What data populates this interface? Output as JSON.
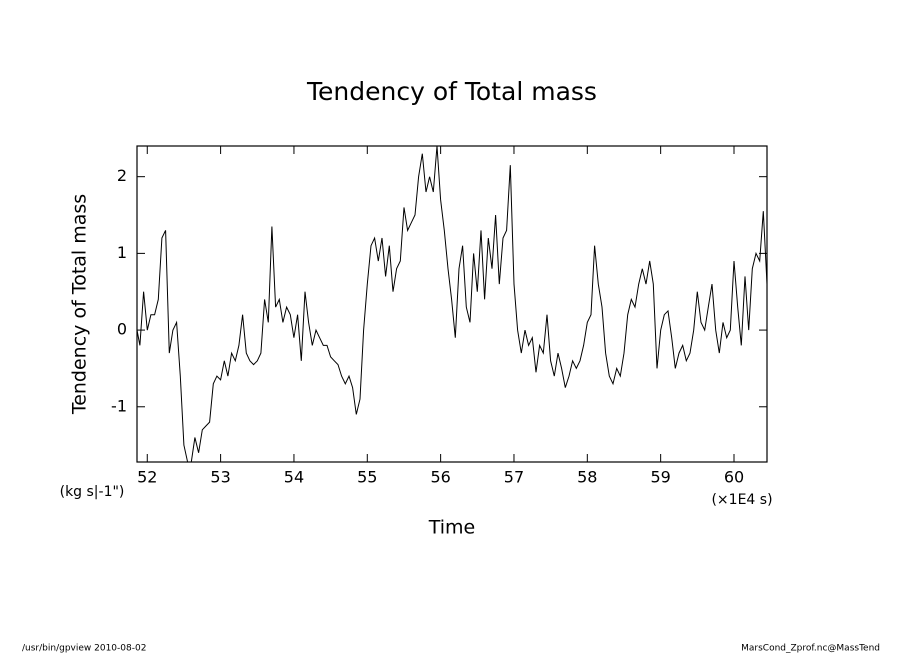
{
  "chart_data": {
    "type": "line",
    "title": "Tendency of Total mass",
    "y_label": "Tendency of Total mass",
    "y_unit": "(kg s|-1\")",
    "x_label": "Time",
    "x_unit": "(×1E4 s)",
    "footer_left": "/usr/bin/gpview   2010-08-02",
    "footer_right": "MarsCond_Zprof.nc@MassTend",
    "color": "#000000",
    "xlim": [
      51.86,
      60.45
    ],
    "ylim": [
      -1.72,
      2.4
    ],
    "xticks": [
      52,
      53,
      54,
      55,
      56,
      57,
      58,
      59,
      60
    ],
    "yticks": [
      -1,
      0,
      1,
      2
    ],
    "x": [
      51.86,
      51.9,
      51.95,
      52.0,
      52.05,
      52.1,
      52.15,
      52.2,
      52.25,
      52.3,
      52.35,
      52.4,
      52.45,
      52.5,
      52.55,
      52.6,
      52.65,
      52.7,
      52.75,
      52.8,
      52.85,
      52.9,
      52.95,
      53.0,
      53.05,
      53.1,
      53.15,
      53.2,
      53.25,
      53.3,
      53.35,
      53.4,
      53.45,
      53.5,
      53.55,
      53.6,
      53.65,
      53.7,
      53.75,
      53.8,
      53.85,
      53.9,
      53.95,
      54.0,
      54.05,
      54.1,
      54.15,
      54.2,
      54.25,
      54.3,
      54.35,
      54.4,
      54.45,
      54.5,
      54.55,
      54.6,
      54.65,
      54.7,
      54.75,
      54.8,
      54.85,
      54.9,
      54.95,
      55.0,
      55.05,
      55.1,
      55.15,
      55.2,
      55.25,
      55.3,
      55.35,
      55.4,
      55.45,
      55.5,
      55.55,
      55.6,
      55.65,
      55.7,
      55.75,
      55.8,
      55.85,
      55.9,
      55.95,
      56.0,
      56.05,
      56.1,
      56.15,
      56.2,
      56.25,
      56.3,
      56.35,
      56.4,
      56.45,
      56.5,
      56.55,
      56.6,
      56.65,
      56.7,
      56.75,
      56.8,
      56.85,
      56.9,
      56.95,
      57.0,
      57.05,
      57.1,
      57.15,
      57.2,
      57.25,
      57.3,
      57.35,
      57.4,
      57.45,
      57.5,
      57.55,
      57.6,
      57.65,
      57.7,
      57.75,
      57.8,
      57.85,
      57.9,
      57.95,
      58.0,
      58.05,
      58.1,
      58.15,
      58.2,
      58.25,
      58.3,
      58.35,
      58.4,
      58.45,
      58.5,
      58.55,
      58.6,
      58.65,
      58.7,
      58.75,
      58.8,
      58.85,
      58.9,
      58.95,
      59.0,
      59.05,
      59.1,
      59.15,
      59.2,
      59.25,
      59.3,
      59.35,
      59.4,
      59.45,
      59.5,
      59.55,
      59.6,
      59.65,
      59.7,
      59.75,
      59.8,
      59.85,
      59.9,
      59.95,
      60.0,
      60.05,
      60.1,
      60.15,
      60.2,
      60.25,
      60.3,
      60.35,
      60.4,
      60.45
    ],
    "values": [
      0.0,
      -0.2,
      0.5,
      0.0,
      0.2,
      0.2,
      0.4,
      1.2,
      1.3,
      -0.3,
      0.0,
      0.1,
      -0.6,
      -1.5,
      -1.72,
      -1.72,
      -1.4,
      -1.6,
      -1.3,
      -1.25,
      -1.2,
      -0.7,
      -0.6,
      -0.65,
      -0.4,
      -0.6,
      -0.3,
      -0.4,
      -0.2,
      0.2,
      -0.3,
      -0.4,
      -0.45,
      -0.4,
      -0.3,
      0.4,
      0.1,
      1.35,
      0.3,
      0.4,
      0.1,
      0.3,
      0.2,
      -0.1,
      0.2,
      -0.4,
      0.5,
      0.1,
      -0.2,
      0.0,
      -0.1,
      -0.2,
      -0.2,
      -0.35,
      -0.4,
      -0.45,
      -0.6,
      -0.7,
      -0.6,
      -0.75,
      -1.1,
      -0.9,
      0.0,
      0.6,
      1.1,
      1.2,
      0.9,
      1.2,
      0.7,
      1.1,
      0.5,
      0.8,
      0.9,
      1.6,
      1.3,
      1.4,
      1.5,
      2.0,
      2.3,
      1.8,
      2.0,
      1.8,
      2.4,
      1.7,
      1.3,
      0.8,
      0.4,
      -0.1,
      0.8,
      1.1,
      0.3,
      0.1,
      1.0,
      0.5,
      1.3,
      0.4,
      1.2,
      0.8,
      1.5,
      0.6,
      1.2,
      1.3,
      2.15,
      0.6,
      0.0,
      -0.3,
      0.0,
      -0.2,
      -0.1,
      -0.55,
      -0.2,
      -0.3,
      0.2,
      -0.4,
      -0.6,
      -0.3,
      -0.5,
      -0.75,
      -0.6,
      -0.4,
      -0.5,
      -0.4,
      -0.2,
      0.1,
      0.2,
      1.1,
      0.6,
      0.3,
      -0.3,
      -0.6,
      -0.7,
      -0.5,
      -0.6,
      -0.3,
      0.2,
      0.4,
      0.3,
      0.6,
      0.8,
      0.6,
      0.9,
      0.6,
      -0.5,
      0.0,
      0.2,
      0.25,
      -0.1,
      -0.5,
      -0.3,
      -0.2,
      -0.4,
      -0.3,
      0.0,
      0.5,
      0.1,
      0.0,
      0.3,
      0.6,
      0.0,
      -0.3,
      0.1,
      -0.1,
      0.0,
      0.9,
      0.3,
      -0.2,
      0.7,
      0.0,
      0.8,
      1.0,
      0.9,
      1.55,
      0.6
    ]
  }
}
